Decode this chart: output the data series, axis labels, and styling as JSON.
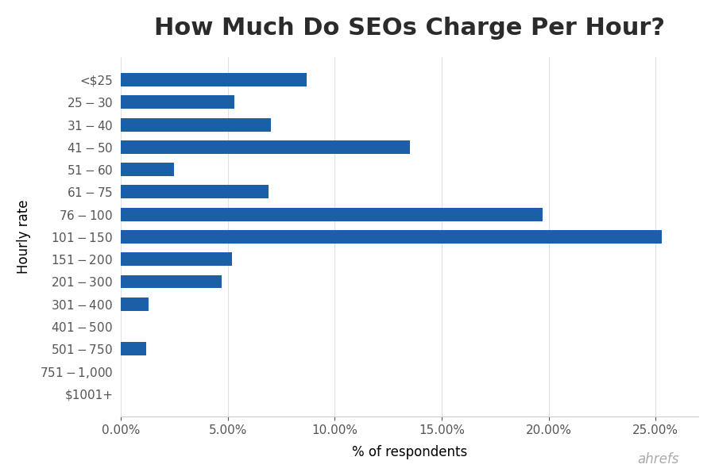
{
  "title": "How Much Do SEOs Charge Per Hour?",
  "categories": [
    "<$25",
    "$25-$30",
    "$31-$40",
    "$41-$50",
    "$51-$60",
    "$61-$75",
    "$76-$100",
    "$101-$150",
    "$151-$200",
    "$201-$300",
    "$301-$400",
    "$401-$500",
    "$501-$750",
    "$751-$1,000",
    "$1001+"
  ],
  "values": [
    8.7,
    5.3,
    7.0,
    13.5,
    2.5,
    6.9,
    19.7,
    25.3,
    5.2,
    4.7,
    1.3,
    0.0,
    1.2,
    0.0,
    0.0
  ],
  "bar_color": "#1a5fa8",
  "xlabel": "% of respondents",
  "ylabel": "Hourly rate",
  "xlim": [
    0,
    27
  ],
  "xticks": [
    0,
    5,
    10,
    15,
    20,
    25
  ],
  "title_fontsize": 22,
  "axis_label_fontsize": 12,
  "tick_fontsize": 11,
  "background_color": "#ffffff",
  "watermark": "ahrefs",
  "watermark_color": "#aaaaaa"
}
